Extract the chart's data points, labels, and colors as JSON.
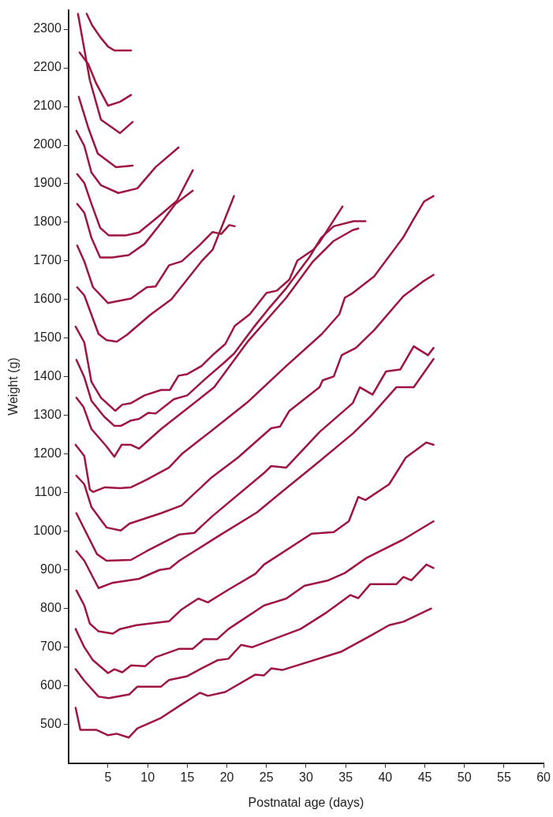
{
  "chart_data": {
    "type": "line",
    "xlabel": "Postnatal age (days)",
    "ylabel": "Weight (g)",
    "xlim": [
      0,
      60
    ],
    "ylim": [
      400,
      2350
    ],
    "xticks": [
      5,
      10,
      15,
      20,
      25,
      30,
      35,
      40,
      45,
      50,
      55,
      60
    ],
    "yticks": [
      500,
      600,
      700,
      800,
      900,
      1000,
      1100,
      1200,
      1300,
      1400,
      1500,
      1600,
      1700,
      1800,
      1900,
      2000,
      2100,
      2200,
      2300
    ],
    "grid": false,
    "legend": false,
    "marker": "none",
    "line_style": "solid",
    "series": [
      {
        "color": "#9e1540",
        "x": [
          2.3,
          3,
          4,
          5,
          5.8,
          7.9
        ],
        "values": [
          2340,
          2310,
          2280,
          2255,
          2245,
          2245
        ]
      },
      {
        "color": "#9e1540",
        "x": [
          1.2,
          2.7,
          4.1,
          6.5,
          8.1
        ],
        "values": [
          2340,
          2168,
          2066,
          2031,
          2060
        ]
      },
      {
        "color": "#9e1540",
        "x": [
          1.4,
          2.5,
          3.5,
          5,
          6.5,
          7.9
        ],
        "values": [
          2240,
          2210,
          2160,
          2102,
          2112,
          2130
        ]
      },
      {
        "color": "#9e1540",
        "x": [
          1.3,
          2.5,
          3.7,
          6,
          8.1
        ],
        "values": [
          2125,
          2045,
          1978,
          1943,
          1947
        ]
      },
      {
        "color": "#9e1540",
        "x": [
          1,
          2,
          2.9,
          4.1,
          6.3,
          8.7,
          11,
          13.9
        ],
        "values": [
          2037,
          1998,
          1929,
          1896,
          1876,
          1888,
          1943,
          1994
        ]
      },
      {
        "color": "#9e1540",
        "x": [
          1.1,
          2,
          2.9,
          4,
          5.1,
          7.2,
          8.9,
          11.7,
          13.7,
          15.7
        ],
        "values": [
          1925,
          1902,
          1848,
          1786,
          1766,
          1766,
          1774,
          1821,
          1856,
          1935
        ]
      },
      {
        "color": "#9e1540",
        "x": [
          1.1,
          2,
          2.9,
          4,
          5.5,
          7.6,
          9.6,
          11.8,
          13.5,
          15.7
        ],
        "values": [
          1848,
          1825,
          1760,
          1709,
          1709,
          1715,
          1744,
          1801,
          1848,
          1882
        ]
      },
      {
        "color": "#9e1540",
        "x": [
          1.1,
          2,
          3.1,
          5,
          7.9,
          9.9,
          11,
          12.7,
          14.3,
          16.5,
          18.2,
          19.3,
          20.3,
          21
        ],
        "values": [
          1740,
          1699,
          1632,
          1591,
          1603,
          1632,
          1634,
          1689,
          1699,
          1740,
          1775,
          1770,
          1793,
          1790
        ]
      },
      {
        "color": "#9e1540",
        "x": [
          1.1,
          2,
          3.8,
          4.8,
          6.1,
          7.4,
          10.3,
          13,
          16.8,
          18.2,
          20.9
        ],
        "values": [
          1632,
          1611,
          1511,
          1495,
          1491,
          1509,
          1560,
          1601,
          1699,
          1729,
          1868
        ]
      },
      {
        "color": "#9e1540",
        "x": [
          0.9,
          2,
          2.9,
          4.1,
          5.9,
          6.8,
          7.9,
          9.6,
          11.7,
          12.8,
          13.9,
          15,
          16.8,
          18.4,
          19.8,
          21,
          22.9,
          25,
          26.3,
          27.9,
          28.9,
          30.9,
          31.7,
          34.6
        ],
        "values": [
          1530,
          1489,
          1387,
          1346,
          1312,
          1328,
          1332,
          1352,
          1366,
          1366,
          1403,
          1407,
          1428,
          1460,
          1485,
          1532,
          1562,
          1617,
          1623,
          1652,
          1701,
          1729,
          1748,
          1841
        ]
      },
      {
        "color": "#9e1540",
        "x": [
          1,
          2,
          2.9,
          4.5,
          5.8,
          6.6,
          7.9,
          8.9,
          10.1,
          11,
          13.3,
          15,
          17.4,
          19.5,
          20.9,
          23.3,
          25.3,
          27.4,
          28.9,
          30.4,
          31.9,
          33.5,
          36,
          37.5
        ],
        "values": [
          1444,
          1399,
          1338,
          1297,
          1273,
          1273,
          1287,
          1291,
          1307,
          1305,
          1342,
          1352,
          1397,
          1434,
          1460,
          1526,
          1577,
          1627,
          1668,
          1709,
          1760,
          1790,
          1803,
          1803
        ]
      },
      {
        "color": "#9e1540",
        "x": [
          1,
          1.9,
          2.9,
          4.8,
          5.8,
          6.7,
          7.9,
          8.9,
          11.7,
          15,
          18.4,
          22.7,
          27.5,
          30.8,
          33.5,
          35.9,
          36.6
        ],
        "values": [
          1346,
          1322,
          1265,
          1220,
          1193,
          1224,
          1224,
          1214,
          1265,
          1318,
          1373,
          1493,
          1605,
          1697,
          1752,
          1780,
          1784
        ]
      },
      {
        "color": "#9e1540",
        "x": [
          0.9,
          2,
          2.7,
          3.1,
          4.6,
          6.5,
          7.9,
          9.9,
          12.7,
          14.3,
          18.1,
          22.7,
          27.5,
          32,
          34.2,
          34.9,
          35.9,
          38.6,
          42.3,
          43.6,
          44.9,
          46.1
        ],
        "values": [
          1224,
          1195,
          1108,
          1102,
          1114,
          1112,
          1114,
          1134,
          1165,
          1200,
          1261,
          1336,
          1428,
          1511,
          1562,
          1605,
          1617,
          1660,
          1762,
          1809,
          1854,
          1868
        ]
      },
      {
        "color": "#9e1540",
        "x": [
          1,
          2,
          2.9,
          4.8,
          6.6,
          7.7,
          11.7,
          14.3,
          18.1,
          21.4,
          25.6,
          26.7,
          27.9,
          31.7,
          32.1,
          33.5,
          34.5,
          36.3,
          38.6,
          42.3,
          44.7,
          46.1
        ],
        "values": [
          1144,
          1122,
          1063,
          1010,
          1002,
          1020,
          1047,
          1067,
          1140,
          1191,
          1267,
          1271,
          1312,
          1373,
          1391,
          1401,
          1456,
          1475,
          1521,
          1609,
          1646,
          1664
        ]
      },
      {
        "color": "#9e1540",
        "x": [
          1,
          2,
          3.6,
          4.8,
          7.9,
          9.9,
          14,
          15.9,
          18.1,
          24.7,
          25.6,
          27.5,
          31.7,
          35.9,
          36.8,
          38.4,
          40.1,
          41.9,
          43.6,
          45.4,
          46.1
        ],
        "values": [
          1047,
          1006,
          941,
          924,
          926,
          949,
          992,
          996,
          1038,
          1151,
          1169,
          1165,
          1257,
          1332,
          1373,
          1354,
          1414,
          1419,
          1479,
          1456,
          1475
        ]
      },
      {
        "color": "#9e1540",
        "x": [
          1,
          2,
          3.8,
          5.6,
          8.9,
          11.5,
          12.8,
          14,
          16.1,
          18.8,
          23.8,
          27,
          31.2,
          35.9,
          38.2,
          41.4,
          43.6,
          46.1
        ],
        "values": [
          949,
          924,
          853,
          867,
          877,
          900,
          904,
          924,
          951,
          986,
          1049,
          1103,
          1173,
          1253,
          1299,
          1373,
          1373,
          1446
        ]
      },
      {
        "color": "#9e1540",
        "x": [
          1,
          2,
          2.7,
          3.8,
          5.6,
          6.5,
          8.6,
          12.7,
          14.3,
          16.4,
          17.6,
          20.2,
          23.6,
          24.7,
          30.7,
          33.5,
          35.4,
          36.6,
          37.5,
          40.5,
          42.6,
          45.2,
          46.1
        ],
        "values": [
          847,
          808,
          761,
          741,
          735,
          747,
          757,
          767,
          798,
          826,
          816,
          849,
          890,
          914,
          994,
          998,
          1026,
          1089,
          1081,
          1122,
          1191,
          1230,
          1224
        ]
      },
      {
        "color": "#9e1540",
        "x": [
          0.9,
          2,
          3.1,
          5,
          5.8,
          6.8,
          7.9,
          9.7,
          11,
          14,
          15.7,
          17.1,
          18.8,
          20.2,
          24.7,
          27.5,
          29.8,
          32.8,
          34.9,
          37.7,
          42.3,
          46.1
        ],
        "values": [
          747,
          700,
          666,
          633,
          643,
          635,
          653,
          651,
          674,
          696,
          696,
          721,
          721,
          747,
          808,
          826,
          859,
          873,
          892,
          932,
          979,
          1026
        ]
      },
      {
        "color": "#9e1540",
        "x": [
          0.9,
          2,
          3.8,
          5.1,
          7.7,
          8.7,
          11.7,
          12.7,
          15,
          16.8,
          18.8,
          20.2,
          21.8,
          23.2,
          29.3,
          32.6,
          35.6,
          36.6,
          38.1,
          41.4,
          42.3,
          43.3,
          45.2,
          46.1
        ],
        "values": [
          643,
          613,
          572,
          568,
          578,
          598,
          598,
          615,
          625,
          645,
          666,
          670,
          706,
          700,
          747,
          790,
          835,
          827,
          863,
          863,
          882,
          873,
          914,
          905
        ]
      },
      {
        "color": "#9e1540",
        "x": [
          0.9,
          1.5,
          3.5,
          5,
          6.1,
          7.6,
          8.7,
          11.7,
          14,
          16.6,
          17.6,
          19.8,
          23.6,
          24.7,
          25.6,
          27,
          34.4,
          38.1,
          40.5,
          42.3,
          45.8
        ],
        "values": [
          543,
          486,
          486,
          472,
          476,
          466,
          490,
          517,
          548,
          582,
          574,
          584,
          629,
          627,
          645,
          641,
          688,
          729,
          757,
          766,
          800
        ]
      }
    ]
  }
}
